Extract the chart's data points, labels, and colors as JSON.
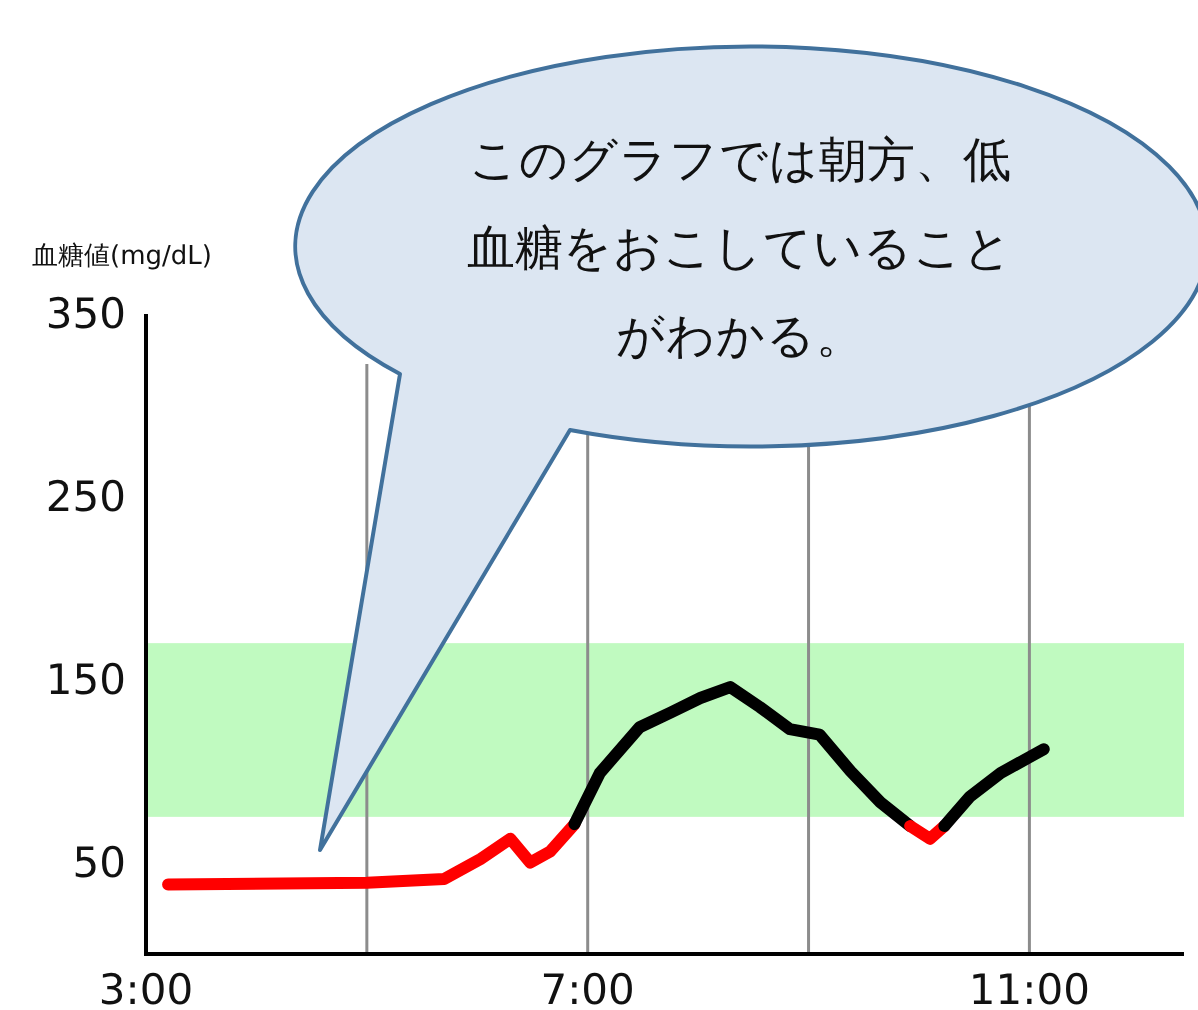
{
  "chart_data": {
    "type": "line",
    "ylabel": "血糖値(mg/dL)",
    "annotations": [
      "このグラフでは朝方、低血糖をおこしていることがわかる。"
    ],
    "xlim": [
      3,
      12.4
    ],
    "ylim": [
      0,
      350
    ],
    "xticks": [
      {
        "value": 3,
        "label": "3:00"
      },
      {
        "value": 5,
        "label": null
      },
      {
        "value": 7,
        "label": "7:00"
      },
      {
        "value": 9,
        "label": null
      },
      {
        "value": 11,
        "label": "11:00"
      }
    ],
    "yticks": [
      50,
      150,
      250,
      350
    ],
    "grid": "x",
    "marker": "none",
    "line_style": "solid",
    "bands": [
      {
        "axis": "y",
        "from": 75,
        "to": 170,
        "color": "#c0fac0"
      }
    ],
    "series": [
      {
        "color": "#ff0000",
        "x": [
          3.2,
          5.0,
          5.7,
          6.03,
          6.3,
          6.48,
          6.66,
          6.88
        ],
        "values": [
          38,
          39,
          41,
          52,
          63,
          50,
          56,
          71
        ]
      },
      {
        "color": "#000000",
        "x": [
          6.88,
          7.11,
          7.47,
          7.75,
          8.02,
          8.29,
          8.56,
          8.83,
          9.1,
          9.38,
          9.65,
          9.92
        ],
        "values": [
          71,
          99,
          124,
          132,
          140,
          146,
          135,
          123,
          120,
          100,
          83,
          70
        ]
      },
      {
        "color": "#ff0000",
        "x": [
          9.92,
          10.1,
          10.23
        ],
        "values": [
          70,
          63,
          70
        ]
      },
      {
        "color": "#000000",
        "x": [
          10.23,
          10.46,
          10.74,
          11.13
        ],
        "values": [
          70,
          86,
          99,
          112
        ]
      }
    ]
  }
}
